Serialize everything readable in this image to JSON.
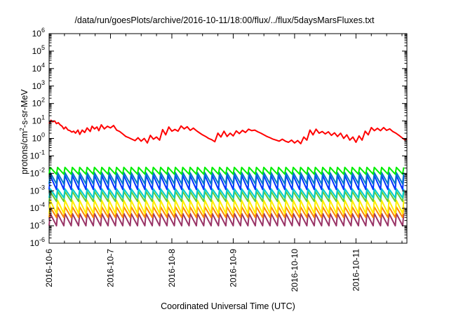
{
  "chart_data": {
    "type": "line",
    "title": "/data/run/goesPlots/archive/2016-10-11/18:00/flux/../flux/5daysMarsFluxes.txt",
    "xlabel": "Coordinated Universal Time (UTC)",
    "ylabel": {
      "prefix": "protons/cm",
      "sup": "2",
      "suffix": "-s-sr-MeV"
    },
    "x_tick_labels": [
      "2016-10-6",
      "2016-10-7",
      "2016-10-8",
      "2016-10-9",
      "2016-10-10",
      "2016-10-11"
    ],
    "xlim_days": [
      0,
      5.83
    ],
    "y_scale": "log",
    "ylim": [
      1e-06,
      1000000.0
    ],
    "y_tick_exponents": [
      -6,
      -5,
      -4,
      -3,
      -2,
      -1,
      0,
      1,
      2,
      3,
      4,
      5,
      6
    ],
    "grid": false,
    "series": [
      {
        "color": "#ff0000",
        "x": [
          0.0,
          0.03,
          0.06,
          0.09,
          0.12,
          0.15,
          0.18,
          0.21,
          0.24,
          0.27,
          0.31,
          0.34,
          0.37,
          0.4,
          0.43,
          0.47,
          0.5,
          0.54,
          0.58,
          0.62,
          0.67,
          0.7,
          0.74,
          0.78,
          0.81,
          0.85,
          0.9,
          0.95,
          1.0,
          1.05,
          1.1,
          1.15,
          1.2,
          1.25,
          1.3,
          1.35,
          1.4,
          1.45,
          1.5,
          1.55,
          1.6,
          1.65,
          1.7,
          1.75,
          1.8,
          1.85,
          1.9,
          1.95,
          2.0,
          2.05,
          2.1,
          2.15,
          2.2,
          2.25,
          2.3,
          2.35,
          2.4,
          2.45,
          2.5,
          2.55,
          2.6,
          2.65,
          2.7,
          2.75,
          2.8,
          2.85,
          2.9,
          2.95,
          3.0,
          3.05,
          3.1,
          3.15,
          3.2,
          3.25,
          3.3,
          3.35,
          3.4,
          3.45,
          3.5,
          3.55,
          3.6,
          3.65,
          3.7,
          3.75,
          3.8,
          3.85,
          3.9,
          3.95,
          4.0,
          4.05,
          4.1,
          4.15,
          4.2,
          4.25,
          4.3,
          4.35,
          4.4,
          4.45,
          4.5,
          4.55,
          4.6,
          4.65,
          4.7,
          4.75,
          4.8,
          4.85,
          4.9,
          4.95,
          5.0,
          5.05,
          5.1,
          5.15,
          5.2,
          5.25,
          5.3,
          5.35,
          5.4,
          5.45,
          5.5,
          5.55,
          5.6,
          5.65,
          5.7,
          5.75,
          5.8,
          5.83
        ],
        "y": [
          7,
          11,
          9,
          10,
          7,
          8,
          6,
          5,
          3.5,
          4.5,
          3,
          2.8,
          2.3,
          2.6,
          2,
          3,
          1.7,
          3,
          2.2,
          4,
          2.5,
          5,
          3.5,
          4.5,
          2.8,
          6,
          3.5,
          5,
          4,
          5.5,
          3,
          2.5,
          1.8,
          1.3,
          1.1,
          0.9,
          0.75,
          1.1,
          0.7,
          1.0,
          0.55,
          1.5,
          0.9,
          1.2,
          0.8,
          3.2,
          1.6,
          4.5,
          2.6,
          3.3,
          2.6,
          5.2,
          3.5,
          4.7,
          2.9,
          3.9,
          2.8,
          2.1,
          1.6,
          1.3,
          1.0,
          0.85,
          0.65,
          2.0,
          1.2,
          2.6,
          1.3,
          2.0,
          1.4,
          2.7,
          1.9,
          2.9,
          2.2,
          3.4,
          2.8,
          3.0,
          2.4,
          2.0,
          1.6,
          1.3,
          1.1,
          0.9,
          0.8,
          0.7,
          0.9,
          0.7,
          0.6,
          0.8,
          0.55,
          0.75,
          0.5,
          1.2,
          0.8,
          3.0,
          1.6,
          3.4,
          2.0,
          2.5,
          1.8,
          2.4,
          1.5,
          2.1,
          1.3,
          2.0,
          1.0,
          1.6,
          0.8,
          1.2,
          0.6,
          1.4,
          0.8,
          2.6,
          1.6,
          4.2,
          2.8,
          3.8,
          2.8,
          4.2,
          2.9,
          3.5,
          2.5,
          2.0,
          1.5,
          1.1,
          0.8,
          1.0
        ]
      },
      {
        "color": "#00ee00",
        "period_days": 0.12,
        "y_peak": 0.022,
        "y_trough": 0.009
      },
      {
        "color": "#0077cc",
        "period_days": 0.12,
        "y_peak": 0.011,
        "y_trough": 0.0025
      },
      {
        "color": "#0033ff",
        "period_days": 0.12,
        "y_peak": 0.0075,
        "y_trough": 0.0012
      },
      {
        "color": "#00cccc",
        "period_days": 0.12,
        "y_peak": 0.0013,
        "y_trough": 0.0004
      },
      {
        "color": "#66cc33",
        "period_days": 0.12,
        "y_peak": 0.0009,
        "y_trough": 0.00025
      },
      {
        "color": "#ffee00",
        "period_days": 0.12,
        "y_peak": 0.00028,
        "y_trough": 5e-05
      },
      {
        "color": "#ff8800",
        "period_days": 0.12,
        "y_peak": 0.00012,
        "y_trough": 3e-05
      },
      {
        "color": "#993366",
        "period_days": 0.12,
        "y_peak": 5e-05,
        "y_trough": 1e-05
      }
    ]
  }
}
